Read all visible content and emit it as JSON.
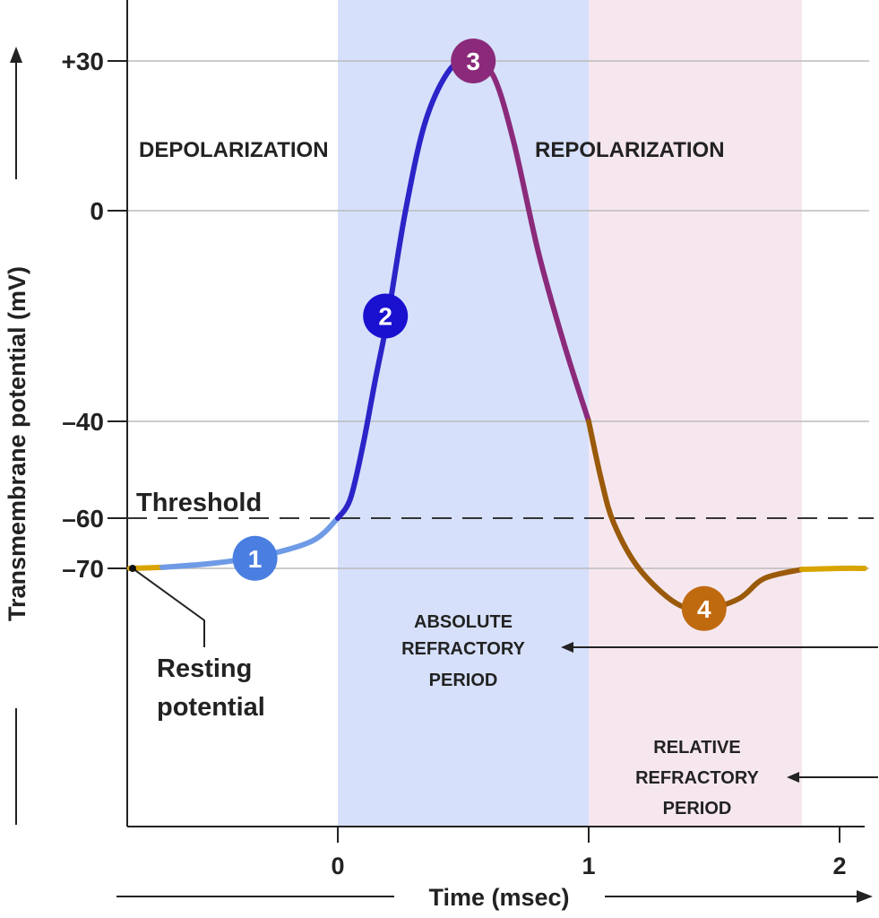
{
  "chart_data": {
    "type": "line",
    "xlabel": "Time (msec)",
    "ylabel": "Transmembrane potential (mV)",
    "x_ticks": [
      0,
      1,
      2
    ],
    "x_tick_labels": [
      "0",
      "1",
      "2"
    ],
    "y_ticks": [
      30,
      0,
      -40,
      -60,
      -70
    ],
    "y_tick_labels": [
      "+30",
      "0",
      "–40",
      "–60",
      "–70"
    ],
    "xlim": [
      -0.83,
      2.1
    ],
    "ylim": [
      -122,
      42
    ],
    "grid": "horizontal at y ticks",
    "threshold": {
      "label": "Threshold",
      "value": -60
    },
    "resting": {
      "label_lines": [
        "Resting",
        "potential"
      ],
      "x": -0.83,
      "value": -70
    },
    "regions": [
      {
        "name": "absolute-refractory",
        "x": [
          0,
          1
        ],
        "color": "#d6e0fb",
        "label_lines": [
          "ABSOLUTE",
          "REFRACTORY",
          "PERIOD"
        ]
      },
      {
        "name": "relative-refractory",
        "x": [
          1,
          1.85
        ],
        "color": "#f6e7ef",
        "label_lines": [
          "RELATIVE",
          "REFRACTORY",
          "PERIOD"
        ]
      }
    ],
    "phase_labels": [
      "DEPOLARIZATION",
      "REPOLARIZATION"
    ],
    "segments": [
      {
        "color": "#d8a400",
        "points": [
          [
            -0.83,
            -70
          ],
          [
            -0.7,
            -69.8
          ]
        ]
      },
      {
        "color": "#6f9ae6",
        "points": [
          [
            -0.7,
            -69.8
          ],
          [
            -0.5,
            -69
          ],
          [
            -0.3,
            -67.5
          ],
          [
            -0.1,
            -64.5
          ],
          [
            0,
            -60
          ]
        ]
      },
      {
        "color": "#2b24c8",
        "points": [
          [
            0,
            -60
          ],
          [
            0.05,
            -56
          ],
          [
            0.1,
            -45
          ],
          [
            0.15,
            -32
          ],
          [
            0.2,
            -20
          ],
          [
            0.27,
            0
          ],
          [
            0.35,
            18
          ],
          [
            0.45,
            28.5
          ],
          [
            0.54,
            30
          ]
        ]
      },
      {
        "color": "#8b2a7a",
        "points": [
          [
            0.54,
            30
          ],
          [
            0.62,
            27
          ],
          [
            0.7,
            14
          ],
          [
            0.8,
            -8
          ],
          [
            0.9,
            -25
          ],
          [
            1.0,
            -40
          ]
        ]
      },
      {
        "color": "#9a5a0a",
        "points": [
          [
            1.0,
            -40
          ],
          [
            1.05,
            -52
          ],
          [
            1.1,
            -61
          ],
          [
            1.2,
            -70
          ],
          [
            1.35,
            -77
          ],
          [
            1.47,
            -78
          ],
          [
            1.6,
            -76
          ],
          [
            1.7,
            -72
          ],
          [
            1.85,
            -70.2
          ]
        ]
      },
      {
        "color": "#d8a400",
        "points": [
          [
            1.85,
            -70.2
          ],
          [
            2.0,
            -70
          ],
          [
            2.1,
            -70
          ]
        ]
      }
    ],
    "markers": [
      {
        "label": "1",
        "x": -0.33,
        "y": -68,
        "color": "#4a7ee0"
      },
      {
        "label": "2",
        "x": 0.19,
        "y": -20,
        "color": "#1a10d0"
      },
      {
        "label": "3",
        "x": 0.54,
        "y": 30,
        "color": "#8b2a7a"
      },
      {
        "label": "4",
        "x": 1.46,
        "y": -78,
        "color": "#c06a10"
      }
    ]
  }
}
